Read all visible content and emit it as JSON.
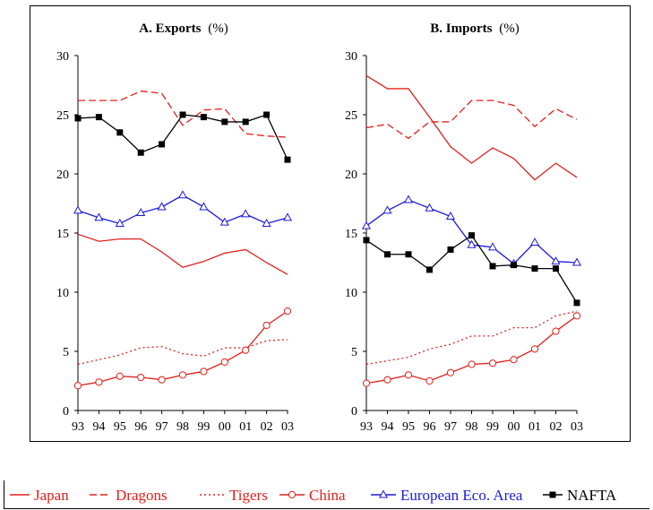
{
  "chart_data": [
    {
      "type": "line",
      "title_bold": "A. Exports",
      "title_unit": "(%)",
      "xlabel": "",
      "ylabel": "",
      "ylim": [
        0,
        30
      ],
      "yticks": [
        0,
        5,
        10,
        15,
        20,
        25,
        30
      ],
      "x": [
        "93",
        "94",
        "95",
        "96",
        "97",
        "98",
        "99",
        "00",
        "01",
        "02",
        "03"
      ],
      "grid": false,
      "series": [
        {
          "name": "Japan",
          "color": "#e0201b",
          "style": "solid",
          "marker": "none",
          "values": [
            14.9,
            14.3,
            14.5,
            14.5,
            13.4,
            12.1,
            12.6,
            13.3,
            13.6,
            12.5,
            11.5
          ]
        },
        {
          "name": "Dragons",
          "color": "#e0201b",
          "style": "dashed",
          "marker": "none",
          "values": [
            26.2,
            26.2,
            26.2,
            27.0,
            26.8,
            24.1,
            25.4,
            25.5,
            23.4,
            23.2,
            23.1
          ]
        },
        {
          "name": "Tigers",
          "color": "#e0201b",
          "style": "dotted",
          "marker": "none",
          "values": [
            3.9,
            4.3,
            4.7,
            5.3,
            5.4,
            4.8,
            4.6,
            5.3,
            5.3,
            5.9,
            6.0
          ]
        },
        {
          "name": "China",
          "color": "#e0201b",
          "style": "solid",
          "marker": "circle",
          "values": [
            2.1,
            2.4,
            2.9,
            2.8,
            2.6,
            3.0,
            3.3,
            4.1,
            5.1,
            7.2,
            8.4
          ]
        },
        {
          "name": "European Eco. Area",
          "color": "#1b1bd9",
          "style": "solid",
          "marker": "triangle",
          "values": [
            16.9,
            16.3,
            15.8,
            16.7,
            17.2,
            18.2,
            17.2,
            15.9,
            16.6,
            15.8,
            16.3
          ]
        },
        {
          "name": "NAFTA",
          "color": "#000000",
          "style": "solid",
          "marker": "square",
          "values": [
            24.7,
            24.8,
            23.5,
            21.8,
            22.5,
            25.0,
            24.8,
            24.4,
            24.4,
            25.0,
            21.2
          ]
        }
      ]
    },
    {
      "type": "line",
      "title_bold": "B. Imports",
      "title_unit": "(%)",
      "xlabel": "",
      "ylabel": "",
      "ylim": [
        0,
        30
      ],
      "yticks": [
        0,
        5,
        10,
        15,
        20,
        25,
        30
      ],
      "x": [
        "93",
        "94",
        "95",
        "96",
        "97",
        "98",
        "99",
        "00",
        "01",
        "02",
        "03"
      ],
      "grid": false,
      "series": [
        {
          "name": "Japan",
          "color": "#e0201b",
          "style": "solid",
          "marker": "none",
          "values": [
            28.3,
            27.2,
            27.2,
            24.8,
            22.3,
            20.9,
            22.2,
            21.3,
            19.5,
            20.9,
            19.7
          ]
        },
        {
          "name": "Dragons",
          "color": "#e0201b",
          "style": "dashed",
          "marker": "none",
          "values": [
            23.9,
            24.2,
            23.0,
            24.4,
            24.4,
            26.2,
            26.2,
            25.8,
            24.0,
            25.5,
            24.6
          ]
        },
        {
          "name": "Tigers",
          "color": "#e0201b",
          "style": "dotted",
          "marker": "none",
          "values": [
            3.9,
            4.2,
            4.5,
            5.2,
            5.6,
            6.3,
            6.3,
            7.0,
            7.0,
            8.0,
            8.4
          ]
        },
        {
          "name": "China",
          "color": "#e0201b",
          "style": "solid",
          "marker": "circle",
          "values": [
            2.3,
            2.6,
            3.0,
            2.5,
            3.2,
            3.9,
            4.0,
            4.3,
            5.2,
            6.7,
            8.0
          ]
        },
        {
          "name": "European Eco. Area",
          "color": "#1b1bd9",
          "style": "solid",
          "marker": "triangle",
          "values": [
            15.6,
            16.9,
            17.8,
            17.1,
            16.4,
            14.0,
            13.8,
            12.4,
            14.2,
            12.6,
            12.5
          ]
        },
        {
          "name": "NAFTA",
          "color": "#000000",
          "style": "solid",
          "marker": "square",
          "values": [
            14.4,
            13.2,
            13.2,
            11.9,
            13.6,
            14.8,
            12.2,
            12.3,
            12.0,
            12.0,
            9.1
          ]
        }
      ]
    }
  ],
  "legend": {
    "placement": "bottom",
    "items": [
      {
        "label": "Japan",
        "color": "#e0201b",
        "style": "solid",
        "marker": "none"
      },
      {
        "label": "Dragons",
        "color": "#e0201b",
        "style": "dashed",
        "marker": "none"
      },
      {
        "label": "Tigers",
        "color": "#e0201b",
        "style": "dotted",
        "marker": "none"
      },
      {
        "label": "China",
        "color": "#e0201b",
        "style": "solid",
        "marker": "circle"
      },
      {
        "label": "European Eco. Area",
        "color": "#1b1bd9",
        "style": "solid",
        "marker": "triangle"
      },
      {
        "label": "NAFTA",
        "color": "#000000",
        "style": "solid",
        "marker": "square"
      }
    ]
  }
}
